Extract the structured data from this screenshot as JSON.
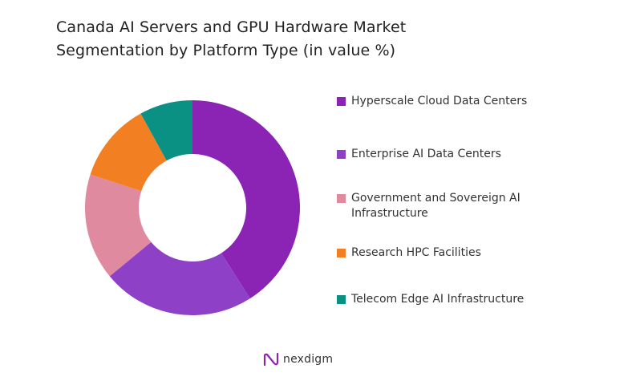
{
  "title_line1": "Canada AI Servers and GPU Hardware Market",
  "title_line2": "Segmentation by Platform Type (in value %)",
  "brand": {
    "name": "nexdigm",
    "logo_icon": "nexdigm-logo-icon"
  },
  "chart_data": {
    "type": "pie",
    "variant": "donut",
    "title": "Canada AI Servers and GPU Hardware Market Segmentation by Platform Type (in value %)",
    "legend_position": "right",
    "categories": [
      "Hyperscale Cloud Data Centers",
      "Enterprise AI Data Centers",
      "Government and Sovereign AI Infrastructure",
      "Research HPC Facilities",
      "Telecom Edge AI Infrastructure"
    ],
    "values": [
      41,
      23,
      16,
      12,
      8
    ],
    "colors": [
      "#8b24b5",
      "#8e41c7",
      "#e08aa0",
      "#f27f22",
      "#0a9183"
    ],
    "legend_labels": [
      [
        "Hyperscale Cloud Data Centers"
      ],
      [
        "Enterprise AI Data Centers"
      ],
      [
        "Government and Sovereign AI",
        "Infrastructure"
      ],
      [
        "Research HPC Facilities"
      ],
      [
        "Telecom Edge AI Infrastructure"
      ]
    ]
  }
}
